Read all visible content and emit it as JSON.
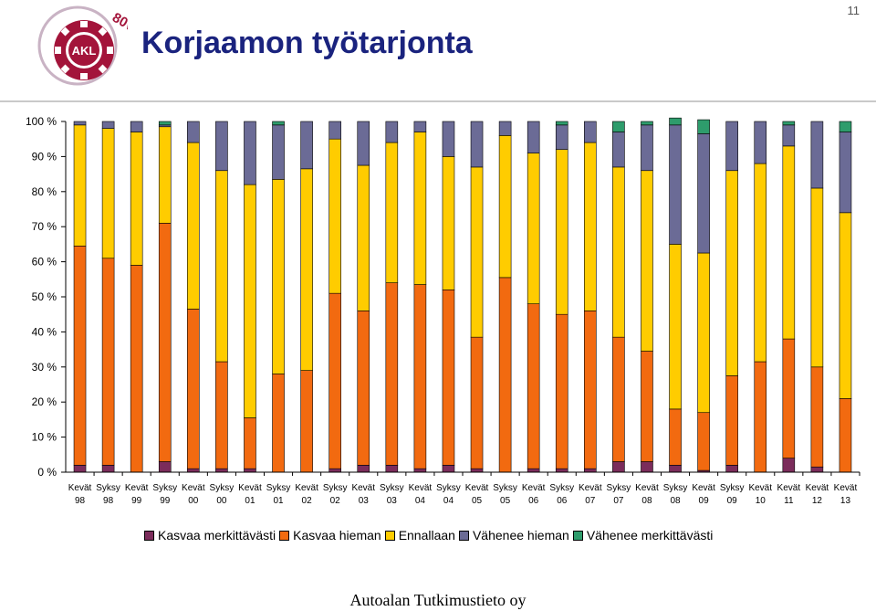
{
  "header": {
    "title": "Korjaamon työtarjonta",
    "slide_number": "11",
    "logo_text": "AKL",
    "logo_badge": "80v"
  },
  "footer": {
    "text": "Autoalan Tutkimustieto oy"
  },
  "colors": {
    "title": "#1a237e",
    "series": [
      "#7b2c5b",
      "#f26a10",
      "#ffcc00",
      "#6b6b96",
      "#2e9c6c"
    ]
  },
  "chart_data": {
    "type": "bar",
    "stacked": true,
    "percent": true,
    "ylim": [
      0,
      100
    ],
    "yticks": [
      "0 %",
      "10 %",
      "20 %",
      "30 %",
      "40 %",
      "50 %",
      "60 %",
      "70 %",
      "80 %",
      "90 %",
      "100 %"
    ],
    "categories": [
      [
        "Kevät",
        "98"
      ],
      [
        "Syksy",
        "98"
      ],
      [
        "Kevät",
        "99"
      ],
      [
        "Syksy",
        "99"
      ],
      [
        "Kevät",
        "00"
      ],
      [
        "Syksy",
        "00"
      ],
      [
        "Kevät",
        "01"
      ],
      [
        "Syksy",
        "01"
      ],
      [
        "Kevät",
        "02"
      ],
      [
        "Syksy",
        "02"
      ],
      [
        "Kevät",
        "03"
      ],
      [
        "Syksy",
        "03"
      ],
      [
        "Kevät",
        "04"
      ],
      [
        "Syksy",
        "04"
      ],
      [
        "Kevät",
        "05"
      ],
      [
        "Syksy",
        "05"
      ],
      [
        "Kevät",
        "06"
      ],
      [
        "Syksy",
        "06"
      ],
      [
        "Kevät",
        "07"
      ],
      [
        "Syksy",
        "07"
      ],
      [
        "Kevät",
        "08"
      ],
      [
        "Syksy",
        "08"
      ],
      [
        "Kevät",
        "09"
      ],
      [
        "Syksy",
        "09"
      ],
      [
        "Kevät",
        "10"
      ],
      [
        "Kevät",
        "11"
      ],
      [
        "Kevät",
        "12"
      ],
      [
        "Kevät",
        "13"
      ]
    ],
    "series": [
      {
        "name": "Kasvaa merkittävästi",
        "color": "#7b2c5b",
        "values": [
          2,
          2,
          0,
          3,
          1,
          1,
          1,
          0,
          0,
          1,
          2,
          2,
          1,
          2,
          1,
          0,
          1,
          1,
          1,
          3,
          3,
          2,
          0.5,
          2,
          0,
          4,
          1.5,
          0
        ]
      },
      {
        "name": "Kasvaa hieman",
        "color": "#f26a10",
        "values": [
          62.5,
          59,
          59,
          68,
          45.5,
          30.5,
          14.5,
          28,
          29,
          50,
          44,
          52,
          52.5,
          50,
          37.5,
          55.5,
          47,
          44,
          45,
          35.5,
          31.5,
          16,
          16.5,
          25.5,
          31.5,
          34,
          28.5,
          21
        ]
      },
      {
        "name": "Ennallaan",
        "color": "#ffcc00",
        "values": [
          34.5,
          37,
          38,
          27.5,
          47.5,
          54.5,
          66.5,
          55.5,
          57.5,
          44,
          41.5,
          40,
          43.5,
          38,
          48.5,
          40.5,
          43,
          47,
          48,
          48.5,
          51.5,
          47,
          45.5,
          58.5,
          56.5,
          55,
          51,
          53
        ]
      },
      {
        "name": "Vähenee hieman",
        "color": "#6b6b96",
        "values": [
          1,
          2,
          3,
          0.5,
          6,
          14,
          18,
          15.5,
          13.5,
          5,
          12.5,
          6,
          3,
          10,
          13,
          4,
          9,
          7,
          6,
          10,
          13,
          34,
          34,
          14,
          12,
          6,
          19,
          23
        ]
      },
      {
        "name": "Vähenee merkittävästi",
        "color": "#2e9c6c",
        "values": [
          0,
          0,
          0,
          1,
          0,
          0,
          0,
          1,
          0,
          0,
          0,
          0,
          0,
          0,
          0,
          0,
          0,
          1,
          0,
          3,
          1,
          2,
          4,
          0,
          0,
          1,
          0,
          3
        ]
      }
    ]
  }
}
